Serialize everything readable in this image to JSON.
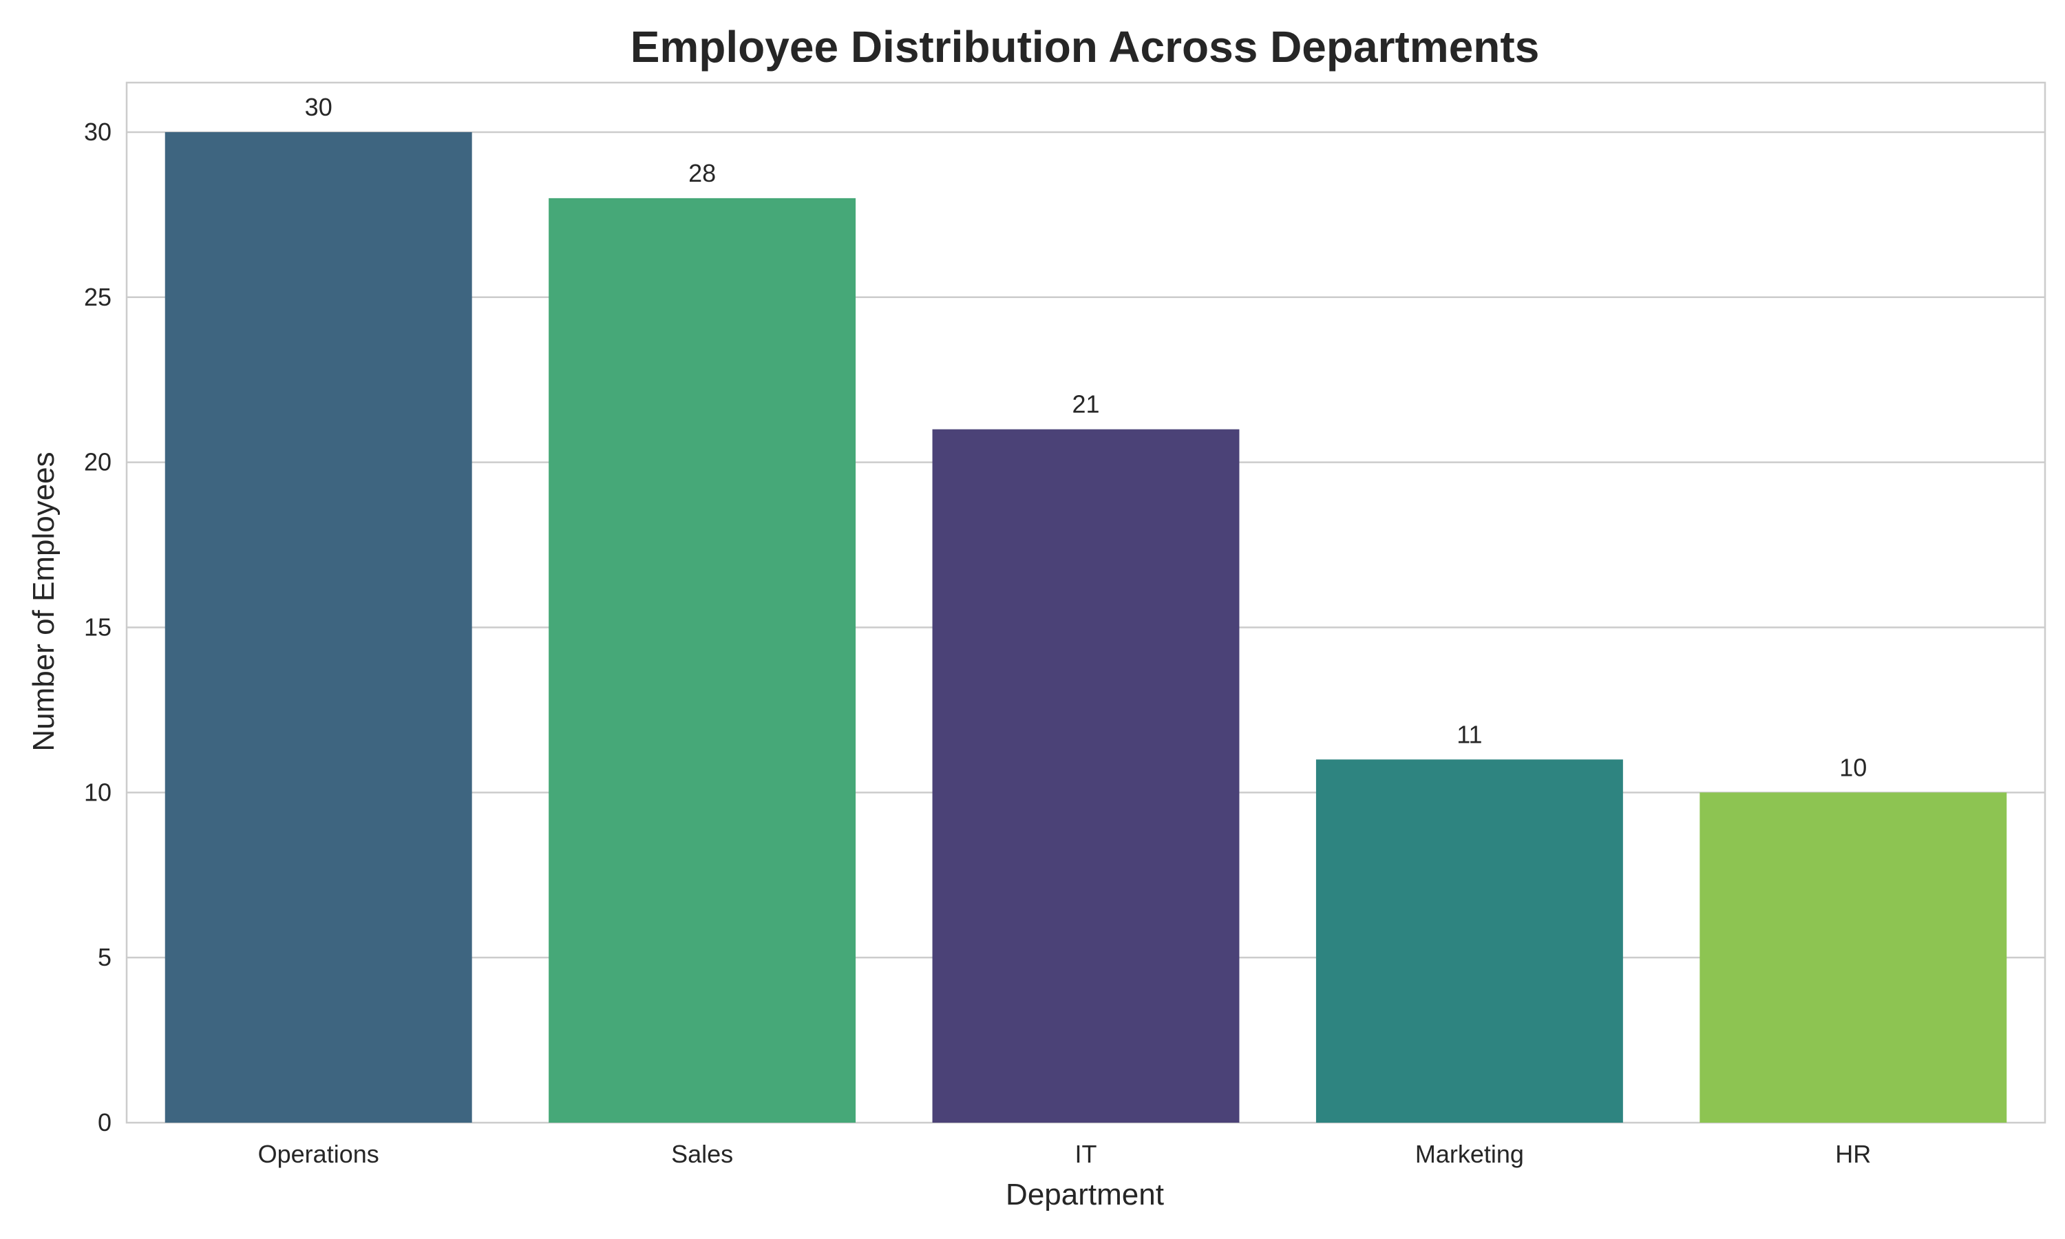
{
  "chart_data": {
    "type": "bar",
    "title": "Employee Distribution Across Departments",
    "xlabel": "Department",
    "ylabel": "Number of Employees",
    "categories": [
      "Operations",
      "Sales",
      "IT",
      "Marketing",
      "HR"
    ],
    "values": [
      30,
      28,
      21,
      11,
      10
    ],
    "data_labels": [
      "30",
      "28",
      "21",
      "11",
      "10"
    ],
    "colors": [
      "#3e6580",
      "#46a878",
      "#4b4277",
      "#2e8480",
      "#8dc452"
    ],
    "ylim": [
      0,
      31.5
    ],
    "yticks": [
      0,
      5,
      10,
      15,
      20,
      25,
      30
    ],
    "ytick_labels": [
      "0",
      "5",
      "10",
      "15",
      "20",
      "25",
      "30"
    ],
    "grid": "horizontal",
    "legend": "none"
  }
}
